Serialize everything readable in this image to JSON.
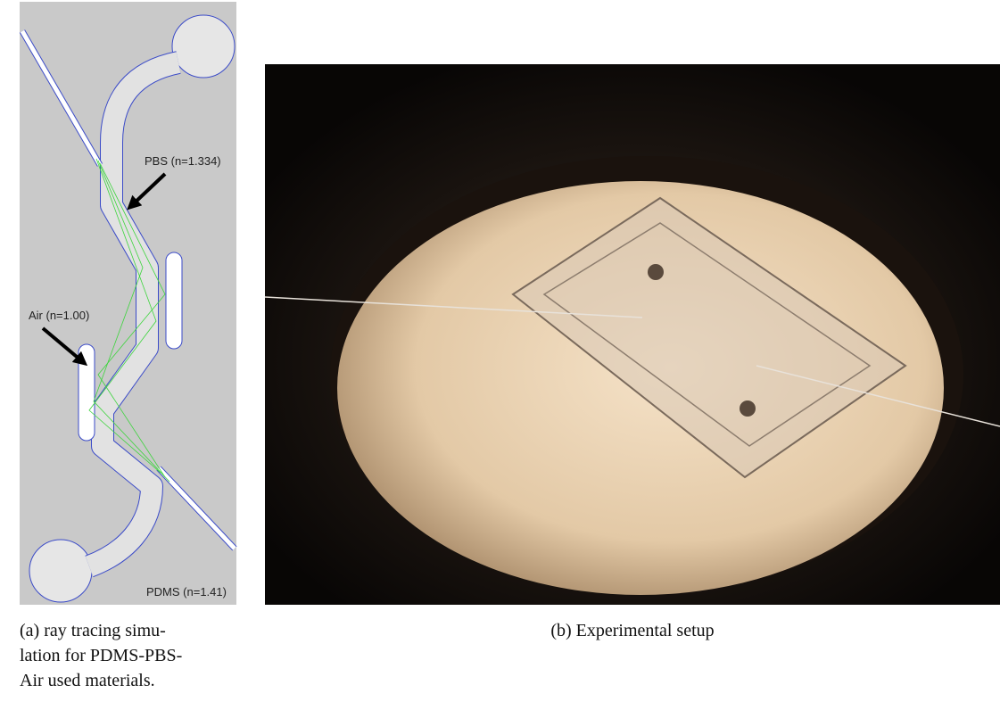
{
  "panel_a": {
    "labels": {
      "pbs": "PBS (n=1.334)",
      "air": "Air (n=1.00)",
      "pdms": "PDMS (n=1.41)"
    },
    "caption": [
      "(a) ray tracing simu-",
      "lation for PDMS-PBS-",
      "Air used materials."
    ]
  },
  "panel_b": {
    "caption": "(b) Experimental setup"
  }
}
